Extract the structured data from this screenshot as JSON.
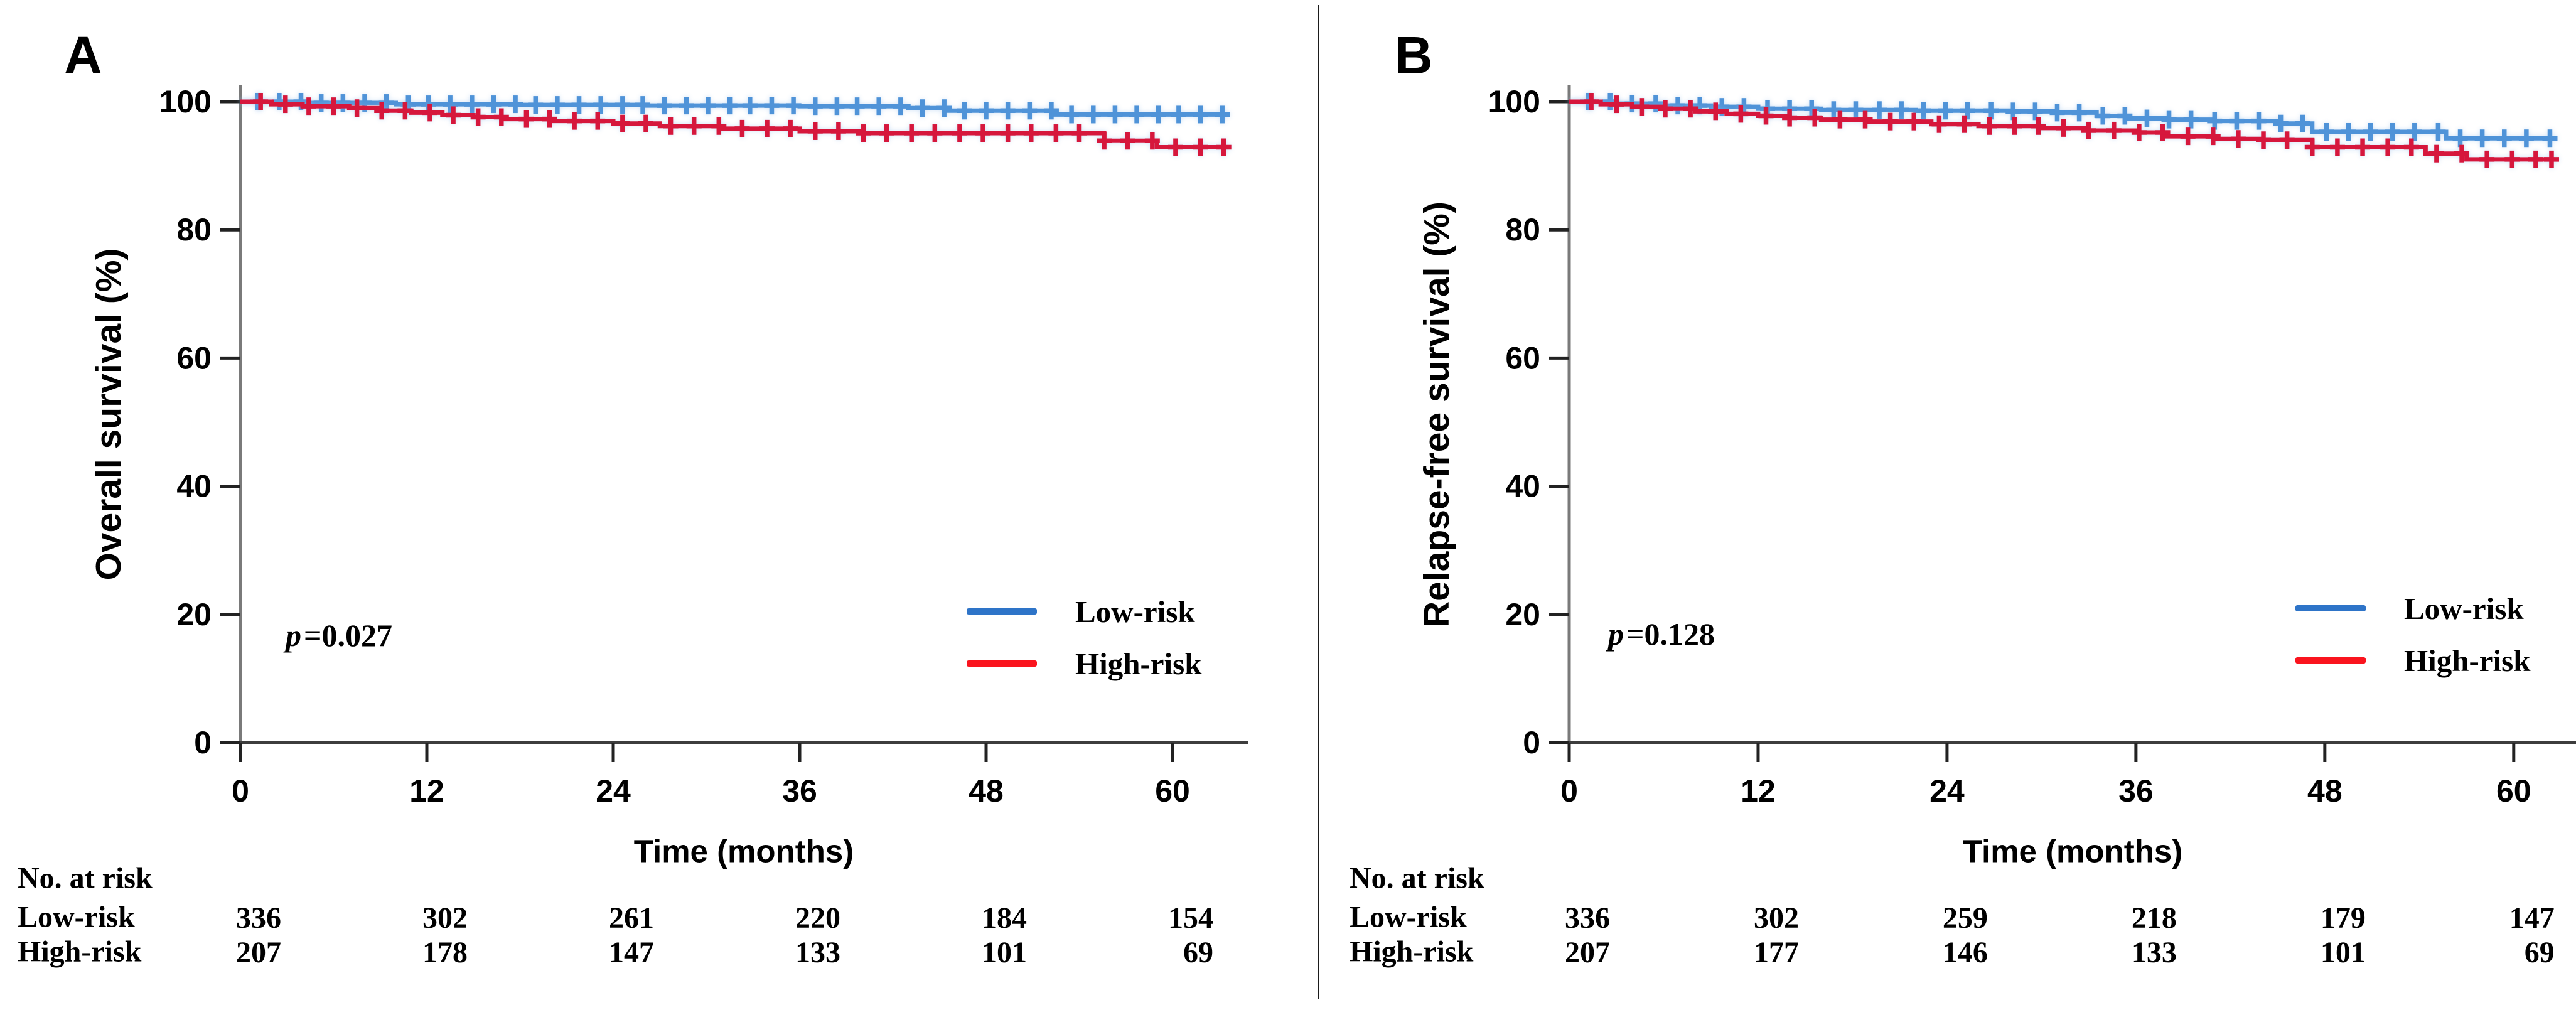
{
  "figure": {
    "panels": [
      {
        "label": "A",
        "y_axis_title": "Overall survival (%)",
        "x_axis_title": "Time (months)",
        "p_symbol": "p",
        "p_equals": "=0.027"
      },
      {
        "label": "B",
        "y_axis_title": "Relapse-free survival (%)",
        "x_axis_title": "Time (months)",
        "p_symbol": "p",
        "p_equals": "=0.128"
      }
    ],
    "colors": {
      "axis_line": "#3d3d3d",
      "y_axis_line": "#7a7a7a",
      "tick": "#222222",
      "text": "#000000",
      "divider": "#1b1b1b"
    }
  },
  "chart_data": [
    {
      "type": "line",
      "subtype": "kaplan-meier-step",
      "title": "",
      "xlabel": "Time (months)",
      "ylabel": "Overall survival (%)",
      "xlim": [
        0,
        64
      ],
      "ylim": [
        0,
        100
      ],
      "x_ticks": [
        0,
        12,
        24,
        36,
        48,
        60
      ],
      "y_ticks": [
        0,
        20,
        40,
        60,
        80,
        100
      ],
      "grid": false,
      "legend_position": "lower-right-inside",
      "p_value_text": "p=0.027",
      "curve_end_month": 63.5,
      "series": [
        {
          "name": "Low-risk",
          "color": "#4f93d8",
          "legend_color": "#2e74c8",
          "steps": [
            [
              0,
              100
            ],
            [
              4,
              99.8
            ],
            [
              10,
              99.6
            ],
            [
              18,
              99.5
            ],
            [
              26,
              99.4
            ],
            [
              36,
              99.3
            ],
            [
              43,
              99.0
            ],
            [
              45.5,
              98.6
            ],
            [
              52.3,
              98.0
            ]
          ],
          "censor_times": [
            1.1,
            2.5,
            3.9,
            5.2,
            6.6,
            8.0,
            9.4,
            10.8,
            12.1,
            13.5,
            14.9,
            16.3,
            17.7,
            19.0,
            20.4,
            21.8,
            23.2,
            24.6,
            25.9,
            27.3,
            28.7,
            30.1,
            31.5,
            32.8,
            34.2,
            35.6,
            37.0,
            38.4,
            39.7,
            41.1,
            42.5,
            43.9,
            45.3,
            46.6,
            48.0,
            49.4,
            50.8,
            52.2,
            53.5,
            54.9,
            56.3,
            57.7,
            59.1,
            60.4,
            61.8,
            63.2
          ]
        },
        {
          "name": "High-risk",
          "color": "#d6173c",
          "legend_color": "#fa141e",
          "steps": [
            [
              0,
              100
            ],
            [
              2,
              99.6
            ],
            [
              4,
              99.3
            ],
            [
              7,
              99.0
            ],
            [
              9,
              98.6
            ],
            [
              11,
              98.3
            ],
            [
              13,
              97.9
            ],
            [
              15,
              97.6
            ],
            [
              17,
              97.3
            ],
            [
              20,
              97.0
            ],
            [
              24,
              96.6
            ],
            [
              27,
              96.2
            ],
            [
              31,
              95.8
            ],
            [
              36,
              95.4
            ],
            [
              40,
              95.1
            ],
            [
              55.6,
              93.9
            ],
            [
              59,
              92.9
            ]
          ],
          "censor_times": [
            1.3,
            2.9,
            4.4,
            6.0,
            7.5,
            9.1,
            10.6,
            12.2,
            13.7,
            15.3,
            16.8,
            18.4,
            19.9,
            21.5,
            23.0,
            24.6,
            26.1,
            27.7,
            29.2,
            30.8,
            32.3,
            33.9,
            35.4,
            37.0,
            38.5,
            40.1,
            41.6,
            43.2,
            44.7,
            46.3,
            47.8,
            49.4,
            50.9,
            52.5,
            54.0,
            55.6,
            57.1,
            58.7,
            60.2,
            61.8,
            63.3
          ]
        }
      ],
      "risk_table": {
        "header": "No. at risk",
        "rows": [
          {
            "label": "Low-risk",
            "values": [
              336,
              302,
              261,
              220,
              184,
              154
            ]
          },
          {
            "label": "High-risk",
            "values": [
              207,
              178,
              147,
              133,
              101,
              69
            ]
          }
        ]
      }
    },
    {
      "type": "line",
      "subtype": "kaplan-meier-step",
      "title": "",
      "xlabel": "Time (months)",
      "ylabel": "Relapse-free survival (%)",
      "xlim": [
        0,
        64
      ],
      "ylim": [
        0,
        100
      ],
      "x_ticks": [
        0,
        12,
        24,
        36,
        48,
        60
      ],
      "y_ticks": [
        0,
        20,
        40,
        60,
        80,
        100
      ],
      "grid": false,
      "legend_position": "lower-right-inside",
      "p_value_text": "p=0.128",
      "curve_end_month": 62.6,
      "series": [
        {
          "name": "Low-risk",
          "color": "#4f93d8",
          "legend_color": "#2e74c8",
          "steps": [
            [
              0,
              100
            ],
            [
              3,
              99.7
            ],
            [
              6,
              99.4
            ],
            [
              9,
              99.2
            ],
            [
              12,
              98.9
            ],
            [
              16,
              98.7
            ],
            [
              22,
              98.6
            ],
            [
              28,
              98.5
            ],
            [
              31,
              98.3
            ],
            [
              33.5,
              97.8
            ],
            [
              35.5,
              97.4
            ],
            [
              38,
              97.2
            ],
            [
              41,
              97.0
            ],
            [
              44.9,
              96.6
            ],
            [
              47.2,
              95.3
            ],
            [
              55.7,
              94.3
            ]
          ],
          "censor_times": [
            1.2,
            2.6,
            4.0,
            5.5,
            6.9,
            8.3,
            9.7,
            11.1,
            12.6,
            14.0,
            15.4,
            16.8,
            18.2,
            19.7,
            21.1,
            22.5,
            23.9,
            25.3,
            26.8,
            28.2,
            29.6,
            31.0,
            32.4,
            33.9,
            35.3,
            36.7,
            38.1,
            39.5,
            41.0,
            42.4,
            43.8,
            45.2,
            46.6,
            48.1,
            49.5,
            50.9,
            52.3,
            53.7,
            55.2,
            56.6,
            58.0,
            59.4,
            60.8,
            62.3
          ]
        },
        {
          "name": "High-risk",
          "color": "#d6173c",
          "legend_color": "#fa141e",
          "steps": [
            [
              0,
              100
            ],
            [
              2,
              99.6
            ],
            [
              4,
              99.2
            ],
            [
              6,
              98.9
            ],
            [
              8,
              98.5
            ],
            [
              10,
              98.1
            ],
            [
              12,
              97.8
            ],
            [
              14,
              97.5
            ],
            [
              16,
              97.2
            ],
            [
              19,
              96.9
            ],
            [
              23,
              96.5
            ],
            [
              26,
              96.2
            ],
            [
              30,
              95.9
            ],
            [
              33,
              95.5
            ],
            [
              36,
              95.2
            ],
            [
              38,
              94.6
            ],
            [
              41,
              94.2
            ],
            [
              44,
              94.0
            ],
            [
              47.2,
              92.9
            ],
            [
              54.4,
              91.9
            ],
            [
              57,
              91.0
            ]
          ],
          "censor_times": [
            1.4,
            3.0,
            4.6,
            6.1,
            7.7,
            9.3,
            10.9,
            12.5,
            14.0,
            15.6,
            17.2,
            18.8,
            20.4,
            21.9,
            23.5,
            25.1,
            26.7,
            28.3,
            29.8,
            31.4,
            33.0,
            34.6,
            36.2,
            37.7,
            39.3,
            40.9,
            42.5,
            44.1,
            45.6,
            47.2,
            48.8,
            50.4,
            52.0,
            53.5,
            55.1,
            56.7,
            58.3,
            59.9,
            61.4,
            62.4
          ]
        }
      ],
      "risk_table": {
        "header": "No. at risk",
        "rows": [
          {
            "label": "Low-risk",
            "values": [
              336,
              302,
              259,
              218,
              179,
              147
            ]
          },
          {
            "label": "High-risk",
            "values": [
              207,
              177,
              146,
              133,
              101,
              69
            ]
          }
        ]
      }
    }
  ]
}
